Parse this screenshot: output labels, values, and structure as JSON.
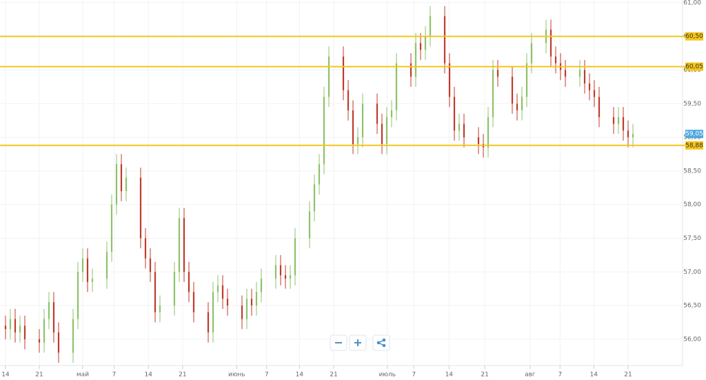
{
  "chart_data": {
    "type": "candlestick",
    "x": [
      0,
      1,
      2,
      3,
      4,
      7,
      8,
      9,
      10,
      11,
      14,
      15,
      16,
      17,
      18,
      21,
      22,
      23,
      24,
      25,
      28,
      29,
      30,
      31,
      32,
      35,
      36,
      37,
      38,
      39,
      42,
      43,
      44,
      45,
      46,
      49,
      50,
      51,
      52,
      53,
      56,
      57,
      58,
      59,
      60,
      63,
      64,
      65,
      66,
      67,
      70,
      71,
      72,
      73,
      74,
      77,
      78,
      79,
      80,
      81,
      84,
      85,
      86,
      87,
      88,
      91,
      92,
      93,
      94,
      95,
      98,
      99,
      100,
      101,
      102,
      105,
      106,
      107,
      108,
      109,
      112,
      113,
      114,
      115,
      116,
      119,
      120,
      121,
      122,
      123,
      126,
      127,
      128,
      129,
      130
    ],
    "open": [
      56.2,
      56.15,
      56.3,
      56.1,
      56.2,
      56.0,
      55.95,
      56.3,
      56.55,
      56.1,
      55.8,
      56.3,
      57.0,
      57.2,
      56.85,
      56.9,
      57.3,
      58.0,
      58.6,
      58.2,
      58.4,
      57.5,
      57.2,
      57.0,
      56.4,
      56.5,
      57.0,
      57.8,
      57.0,
      56.7,
      56.4,
      56.1,
      56.7,
      56.8,
      56.6,
      56.5,
      56.3,
      56.6,
      56.5,
      56.7,
      56.9,
      57.1,
      56.95,
      56.9,
      56.95,
      57.5,
      57.9,
      58.3,
      58.6,
      59.6,
      60.2,
      59.7,
      59.4,
      58.9,
      59.0,
      59.5,
      59.2,
      58.9,
      59.3,
      59.4,
      60.1,
      59.9,
      60.4,
      60.3,
      60.5,
      60.8,
      60.1,
      59.6,
      59.1,
      59.2,
      59.0,
      58.9,
      58.85,
      59.3,
      60.0,
      59.9,
      59.5,
      59.4,
      59.6,
      60.1,
      60.4,
      60.6,
      60.2,
      60.1,
      60.0,
      59.9,
      60.0,
      59.8,
      59.7,
      59.6,
      59.3,
      59.2,
      59.3,
      59.1,
      59.0
    ],
    "high": [
      56.35,
      56.45,
      56.45,
      56.35,
      56.35,
      56.15,
      56.45,
      56.7,
      56.7,
      56.25,
      56.45,
      57.15,
      57.35,
      57.35,
      57.05,
      57.45,
      58.15,
      58.75,
      58.75,
      58.55,
      58.55,
      57.65,
      57.35,
      57.15,
      56.65,
      57.15,
      57.95,
      57.95,
      57.15,
      56.85,
      56.55,
      56.85,
      56.95,
      56.95,
      56.75,
      56.65,
      56.75,
      56.75,
      56.85,
      57.05,
      57.25,
      57.25,
      57.1,
      57.1,
      57.65,
      58.05,
      58.45,
      58.75,
      59.75,
      60.35,
      60.35,
      59.85,
      59.55,
      59.15,
      59.65,
      59.65,
      59.35,
      59.45,
      59.55,
      60.25,
      60.25,
      60.55,
      60.55,
      60.65,
      60.95,
      60.95,
      60.25,
      59.75,
      59.35,
      59.35,
      59.15,
      59.05,
      59.45,
      60.15,
      60.15,
      60.05,
      59.65,
      59.75,
      60.25,
      60.55,
      60.75,
      60.75,
      60.35,
      60.25,
      60.15,
      60.15,
      60.15,
      59.95,
      59.85,
      59.75,
      59.45,
      59.45,
      59.45,
      59.25,
      59.2
    ],
    "low": [
      56.0,
      56.0,
      55.95,
      55.95,
      55.85,
      55.8,
      55.8,
      56.15,
      55.95,
      55.65,
      55.65,
      56.15,
      56.85,
      56.7,
      56.7,
      56.75,
      57.15,
      57.85,
      58.05,
      58.05,
      57.35,
      57.05,
      56.85,
      56.25,
      56.25,
      56.35,
      56.85,
      56.85,
      56.55,
      56.25,
      55.95,
      55.95,
      56.55,
      56.45,
      56.35,
      56.15,
      56.15,
      56.35,
      56.35,
      56.55,
      56.75,
      56.8,
      56.75,
      56.75,
      56.8,
      57.35,
      57.75,
      58.15,
      58.45,
      59.45,
      59.55,
      59.25,
      58.75,
      58.75,
      58.85,
      59.05,
      58.75,
      58.75,
      59.15,
      59.25,
      59.75,
      59.75,
      60.15,
      60.15,
      60.35,
      59.95,
      59.45,
      58.95,
      58.95,
      58.85,
      58.75,
      58.7,
      58.7,
      59.15,
      59.75,
      59.35,
      59.25,
      59.25,
      59.45,
      59.95,
      60.25,
      60.05,
      59.95,
      59.85,
      59.75,
      59.75,
      59.65,
      59.55,
      59.45,
      59.15,
      59.05,
      59.05,
      58.95,
      58.85,
      58.85
    ],
    "close": [
      56.15,
      56.3,
      56.1,
      56.2,
      56.0,
      55.95,
      56.3,
      56.55,
      56.1,
      55.8,
      56.3,
      57.0,
      57.2,
      56.85,
      56.9,
      57.3,
      58.0,
      58.6,
      58.2,
      58.4,
      57.5,
      57.2,
      57.0,
      56.4,
      56.5,
      57.0,
      57.8,
      57.0,
      56.7,
      56.4,
      56.1,
      56.7,
      56.8,
      56.6,
      56.5,
      56.3,
      56.6,
      56.5,
      56.7,
      56.9,
      57.1,
      56.95,
      56.9,
      56.95,
      57.5,
      57.9,
      58.3,
      58.6,
      59.6,
      60.2,
      59.7,
      59.4,
      58.9,
      59.0,
      59.5,
      59.2,
      58.9,
      59.3,
      59.4,
      60.1,
      59.9,
      60.4,
      60.3,
      60.5,
      60.8,
      60.1,
      59.6,
      59.1,
      59.2,
      59.0,
      58.9,
      58.85,
      59.3,
      60.0,
      59.9,
      59.5,
      59.4,
      59.6,
      60.1,
      60.4,
      60.6,
      60.2,
      60.1,
      60.0,
      59.9,
      60.0,
      59.8,
      59.7,
      59.6,
      59.3,
      59.2,
      59.3,
      59.1,
      59.0,
      59.05
    ],
    "up_color": "#8cc269",
    "down_color": "#c0392b",
    "xlim": [
      -1.14,
      139.57
    ],
    "xticks": [
      {
        "value": 0,
        "label": "14"
      },
      {
        "value": 7,
        "label": "21"
      },
      {
        "value": 16,
        "label": "май"
      },
      {
        "value": 22.5,
        "label": "7"
      },
      {
        "value": 29.6,
        "label": "14"
      },
      {
        "value": 36.7,
        "label": "21"
      },
      {
        "value": 47.9,
        "label": "июнь"
      },
      {
        "value": 54.1,
        "label": "7"
      },
      {
        "value": 60.9,
        "label": "14"
      },
      {
        "value": 68,
        "label": "21"
      },
      {
        "value": 79.1,
        "label": "июль"
      },
      {
        "value": 84.6,
        "label": "7"
      },
      {
        "value": 91.9,
        "label": "14"
      },
      {
        "value": 99.3,
        "label": "21"
      },
      {
        "value": 108.7,
        "label": "авг"
      },
      {
        "value": 114.9,
        "label": "7"
      },
      {
        "value": 121.9,
        "label": "14"
      },
      {
        "value": 129,
        "label": "21"
      }
    ],
    "ylim": [
      55.65,
      61.04
    ],
    "yticks": [
      {
        "value": 56,
        "label": "56,00"
      },
      {
        "value": 56.5,
        "label": "56,50"
      },
      {
        "value": 57,
        "label": "57,00"
      },
      {
        "value": 57.5,
        "label": "57,50"
      },
      {
        "value": 58,
        "label": "58,00"
      },
      {
        "value": 58.5,
        "label": "58,50"
      },
      {
        "value": 59,
        "label": "59,00"
      },
      {
        "value": 59.5,
        "label": "59,50"
      },
      {
        "value": 60,
        "label": "60,00"
      },
      {
        "value": 60.5,
        "label": "60,50"
      },
      {
        "value": 61,
        "label": "61,00"
      }
    ],
    "grid": true,
    "levels": [
      {
        "value": 60.5,
        "label": "60,50"
      },
      {
        "value": 60.05,
        "label": "60,05"
      },
      {
        "value": 58.88,
        "label": "58,88"
      }
    ],
    "level_color": "#f5c518",
    "current": {
      "value": 59.05,
      "label": "59,05"
    },
    "current_color": "#4ea8de"
  }
}
